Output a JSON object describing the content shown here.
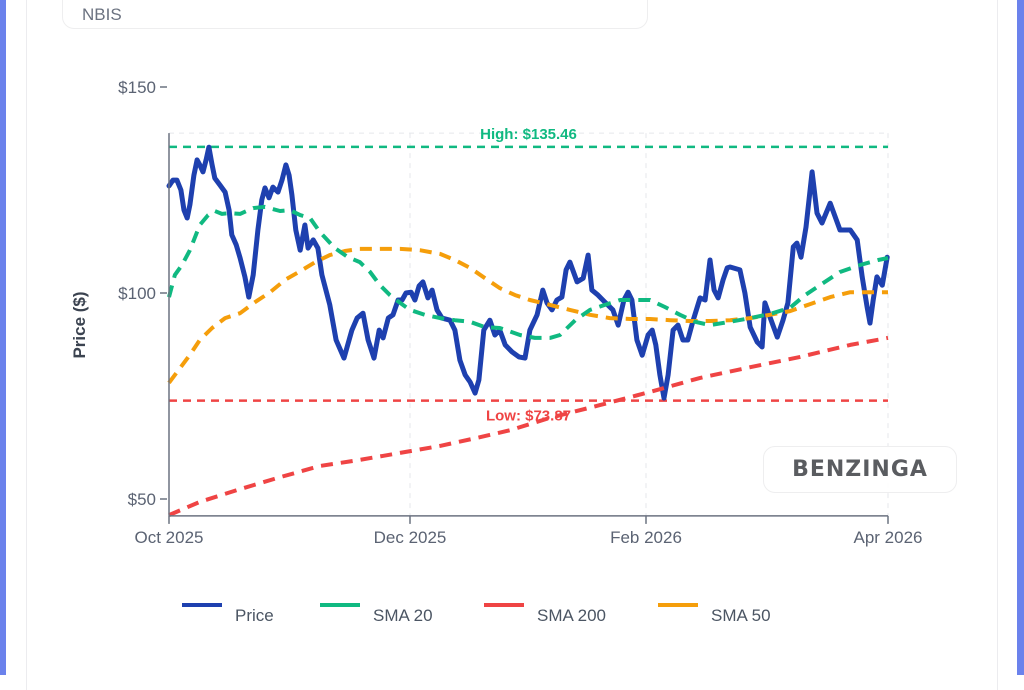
{
  "ticker": "NBIS",
  "logo": "BENZINGA",
  "colors": {
    "frame": "#6b82ec",
    "price": "#1e40af",
    "sma20": "#10b981",
    "sma200": "#ef4444",
    "sma50": "#f59e0b",
    "grid": "#e5e7eb",
    "axis": "#6b7280"
  },
  "chart_data": {
    "type": "line",
    "title": "NBIS",
    "xlabel": "",
    "ylabel": "Price ($)",
    "x_unit": "days since Oct 1, 2025",
    "x_ticks": [
      {
        "day": 0,
        "label": "Oct 2025"
      },
      {
        "day": 61,
        "label": "Dec 2025"
      },
      {
        "day": 123,
        "label": "Feb 2026"
      },
      {
        "day": 182,
        "label": "Apr 2026"
      }
    ],
    "y_ticks": [
      {
        "value": 50,
        "label": "$50"
      },
      {
        "value": 100,
        "label": "$100"
      },
      {
        "value": 150,
        "label": "$150"
      }
    ],
    "ylim": [
      45.9,
      138.8
    ],
    "xlim": [
      0,
      182
    ],
    "grid": true,
    "legend_position": "bottom",
    "annotations": [
      {
        "label": "High: $135.46",
        "value": 135.46,
        "series_color": "sma20",
        "position": "above"
      },
      {
        "label": "Low: $73.87",
        "value": 73.87,
        "series_color": "sma200",
        "position": "below"
      }
    ],
    "series": [
      {
        "name": "Price",
        "color_key": "price",
        "dash": false,
        "points": [
          [
            0,
            126.0
          ],
          [
            1.0,
            127.4
          ],
          [
            2.0,
            127.4
          ],
          [
            3.0,
            125.0
          ],
          [
            3.8,
            120.1
          ],
          [
            4.6,
            118.2
          ],
          [
            5.3,
            121.4
          ],
          [
            6.3,
            128.6
          ],
          [
            7.1,
            132.3
          ],
          [
            7.8,
            131.1
          ],
          [
            8.6,
            129.4
          ],
          [
            9.4,
            132.3
          ],
          [
            10.1,
            135.4
          ],
          [
            10.9,
            131.1
          ],
          [
            11.6,
            127.9
          ],
          [
            12.9,
            126.2
          ],
          [
            14.2,
            124.5
          ],
          [
            15.2,
            120.1
          ],
          [
            15.9,
            114.1
          ],
          [
            17.0,
            111.7
          ],
          [
            18.0,
            108.5
          ],
          [
            19.2,
            103.9
          ],
          [
            20.2,
            99.0
          ],
          [
            21.3,
            104.4
          ],
          [
            22.5,
            115.3
          ],
          [
            23.5,
            122.6
          ],
          [
            24.3,
            125.5
          ],
          [
            25.3,
            123.1
          ],
          [
            26.3,
            125.7
          ],
          [
            27.6,
            124.5
          ],
          [
            28.6,
            127.4
          ],
          [
            29.6,
            131.1
          ],
          [
            30.4,
            128.6
          ],
          [
            31.1,
            123.8
          ],
          [
            32.1,
            115.3
          ],
          [
            33.2,
            110.4
          ],
          [
            34.4,
            116.5
          ],
          [
            35.2,
            110.9
          ],
          [
            36.5,
            112.9
          ],
          [
            37.7,
            110.9
          ],
          [
            38.7,
            104.4
          ],
          [
            40.7,
            97.1
          ],
          [
            42.3,
            88.6
          ],
          [
            44.3,
            84.2
          ],
          [
            46.3,
            91.0
          ],
          [
            47.6,
            93.9
          ],
          [
            49.1,
            95.1
          ],
          [
            50.4,
            88.6
          ],
          [
            51.9,
            84.2
          ],
          [
            53.2,
            91.0
          ],
          [
            54.2,
            89.1
          ],
          [
            55.5,
            93.9
          ],
          [
            56.7,
            94.7
          ],
          [
            58.0,
            98.3
          ],
          [
            59.0,
            98.3
          ],
          [
            60.0,
            100.0
          ],
          [
            61.3,
            100.2
          ],
          [
            62.3,
            98.3
          ],
          [
            63.4,
            101.7
          ],
          [
            64.4,
            102.7
          ],
          [
            65.7,
            98.8
          ],
          [
            66.8,
            100.7
          ],
          [
            68.1,
            95.9
          ],
          [
            69.4,
            93.9
          ],
          [
            71.5,
            93.4
          ],
          [
            72.8,
            91.0
          ],
          [
            74.1,
            83.7
          ],
          [
            75.5,
            80.1
          ],
          [
            76.8,
            78.4
          ],
          [
            78.1,
            75.7
          ],
          [
            79.1,
            78.9
          ],
          [
            80.4,
            91.0
          ],
          [
            82.0,
            93.4
          ],
          [
            83.3,
            89.8
          ],
          [
            84.6,
            91.0
          ],
          [
            86.0,
            87.4
          ],
          [
            87.8,
            85.7
          ],
          [
            89.6,
            84.5
          ],
          [
            91.2,
            84.2
          ],
          [
            92.5,
            91.0
          ],
          [
            94.4,
            94.7
          ],
          [
            95.9,
            100.7
          ],
          [
            97.0,
            97.6
          ],
          [
            98.3,
            95.9
          ],
          [
            99.6,
            98.3
          ],
          [
            100.9,
            99.0
          ],
          [
            102.0,
            105.6
          ],
          [
            103.0,
            107.5
          ],
          [
            104.9,
            102.7
          ],
          [
            106.5,
            103.6
          ],
          [
            107.8,
            109.2
          ],
          [
            108.8,
            100.7
          ],
          [
            110.4,
            99.5
          ],
          [
            112.2,
            97.8
          ],
          [
            114.3,
            95.9
          ],
          [
            115.7,
            92.2
          ],
          [
            117.2,
            98.3
          ],
          [
            118.3,
            100.2
          ],
          [
            119.3,
            98.3
          ],
          [
            120.6,
            88.6
          ],
          [
            122.0,
            84.9
          ],
          [
            123.5,
            89.8
          ],
          [
            124.5,
            91.0
          ],
          [
            125.4,
            87.4
          ],
          [
            126.4,
            80.1
          ],
          [
            127.4,
            74.5
          ],
          [
            128.4,
            80.1
          ],
          [
            129.6,
            91.0
          ],
          [
            130.8,
            92.2
          ],
          [
            132.0,
            88.6
          ],
          [
            133.2,
            88.6
          ],
          [
            134.5,
            93.4
          ],
          [
            136.2,
            98.8
          ],
          [
            137.4,
            98.3
          ],
          [
            138.6,
            108.0
          ],
          [
            139.6,
            100.7
          ],
          [
            140.6,
            98.8
          ],
          [
            141.8,
            103.2
          ],
          [
            142.8,
            106.1
          ],
          [
            143.5,
            106.3
          ],
          [
            145.9,
            105.6
          ],
          [
            147.1,
            100.0
          ],
          [
            148.4,
            91.7
          ],
          [
            150.1,
            88.1
          ],
          [
            151.3,
            86.9
          ],
          [
            152.0,
            97.6
          ],
          [
            153.2,
            94.2
          ],
          [
            155.0,
            89.3
          ],
          [
            156.4,
            93.4
          ],
          [
            157.6,
            97.6
          ],
          [
            158.9,
            111.2
          ],
          [
            159.8,
            112.1
          ],
          [
            160.8,
            108.7
          ],
          [
            162.0,
            116.0
          ],
          [
            163.5,
            129.4
          ],
          [
            164.7,
            119.4
          ],
          [
            165.9,
            117.0
          ],
          [
            167.9,
            121.8
          ],
          [
            170.3,
            115.3
          ],
          [
            172.8,
            115.3
          ],
          [
            174.5,
            112.9
          ],
          [
            175.7,
            103.9
          ],
          [
            176.9,
            96.6
          ],
          [
            177.6,
            92.7
          ],
          [
            178.4,
            98.3
          ],
          [
            179.3,
            103.9
          ],
          [
            180.6,
            101.9
          ],
          [
            181.8,
            108.7
          ]
        ]
      },
      {
        "name": "SMA 20",
        "color_key": "sma20",
        "dash": true,
        "points": [
          [
            0,
            99.0
          ],
          [
            1.5,
            104.4
          ],
          [
            3.3,
            106.8
          ],
          [
            5.3,
            110.4
          ],
          [
            7.8,
            116.5
          ],
          [
            9.9,
            118.9
          ],
          [
            11.6,
            119.9
          ],
          [
            13.4,
            119.2
          ],
          [
            15.4,
            119.4
          ],
          [
            18.0,
            119.2
          ],
          [
            21.3,
            120.6
          ],
          [
            24.3,
            120.9
          ],
          [
            28.1,
            119.9
          ],
          [
            30.6,
            120.1
          ],
          [
            33.2,
            118.9
          ],
          [
            35.7,
            118.2
          ],
          [
            38.2,
            114.8
          ],
          [
            42.0,
            110.9
          ],
          [
            45.3,
            108.7
          ],
          [
            48.3,
            107.5
          ],
          [
            50.9,
            105.1
          ],
          [
            53.4,
            101.9
          ],
          [
            55.9,
            99.5
          ],
          [
            58.5,
            97.6
          ],
          [
            61,
            95.9
          ],
          [
            64.9,
            94.7
          ],
          [
            68.9,
            93.9
          ],
          [
            72.8,
            93.4
          ],
          [
            76.8,
            93.0
          ],
          [
            80.7,
            91.7
          ],
          [
            84.6,
            91.5
          ],
          [
            89.9,
            89.8
          ],
          [
            93.8,
            89.1
          ],
          [
            97.8,
            89.1
          ],
          [
            100.4,
            89.8
          ],
          [
            104.4,
            93.4
          ],
          [
            108.3,
            95.9
          ],
          [
            112.2,
            97.1
          ],
          [
            116.2,
            98.3
          ],
          [
            120.1,
            98.3
          ],
          [
            124.0,
            98.3
          ],
          [
            127.6,
            96.6
          ],
          [
            131.3,
            94.7
          ],
          [
            135.0,
            93.0
          ],
          [
            138.6,
            92.2
          ],
          [
            143.5,
            93.0
          ],
          [
            148.4,
            93.9
          ],
          [
            153.2,
            94.9
          ],
          [
            158.1,
            96.4
          ],
          [
            161.8,
            99.5
          ],
          [
            165.4,
            101.9
          ],
          [
            170.3,
            105.1
          ],
          [
            175.2,
            106.8
          ],
          [
            179.6,
            108.0
          ],
          [
            182,
            108.5
          ]
        ]
      },
      {
        "name": "SMA 200",
        "color_key": "sma200",
        "dash": true,
        "points": [
          [
            0,
            46.1
          ],
          [
            7.8,
            49.3
          ],
          [
            18.0,
            52.4
          ],
          [
            28.1,
            55.3
          ],
          [
            38.2,
            58.0
          ],
          [
            48.3,
            59.5
          ],
          [
            58.5,
            61.2
          ],
          [
            68.9,
            62.9
          ],
          [
            79.4,
            65.0
          ],
          [
            87.3,
            66.7
          ],
          [
            97.8,
            69.7
          ],
          [
            110.9,
            72.8
          ],
          [
            124.0,
            76.0
          ],
          [
            136.2,
            79.4
          ],
          [
            148.4,
            82.0
          ],
          [
            160.6,
            84.5
          ],
          [
            172.8,
            87.4
          ],
          [
            182,
            89.1
          ]
        ]
      },
      {
        "name": "SMA 50",
        "color_key": "sma50",
        "dash": true,
        "points": [
          [
            0,
            78.2
          ],
          [
            2.8,
            81.8
          ],
          [
            5.3,
            85.0
          ],
          [
            7.8,
            88.6
          ],
          [
            10.9,
            91.5
          ],
          [
            14.2,
            93.9
          ],
          [
            18.0,
            95.1
          ],
          [
            21.8,
            97.8
          ],
          [
            25.6,
            100.2
          ],
          [
            29.4,
            103.2
          ],
          [
            33.2,
            105.3
          ],
          [
            37.0,
            107.5
          ],
          [
            40.7,
            109.2
          ],
          [
            44.5,
            110.2
          ],
          [
            48.3,
            110.7
          ],
          [
            53.4,
            110.7
          ],
          [
            58.5,
            110.7
          ],
          [
            63.6,
            110.4
          ],
          [
            68.9,
            109.5
          ],
          [
            72.8,
            108.0
          ],
          [
            76.8,
            106.1
          ],
          [
            80.7,
            103.6
          ],
          [
            84.6,
            101.2
          ],
          [
            88.6,
            99.5
          ],
          [
            92.5,
            98.3
          ],
          [
            97.8,
            97.1
          ],
          [
            103.0,
            95.9
          ],
          [
            108.3,
            94.7
          ],
          [
            113.5,
            93.9
          ],
          [
            118.8,
            93.7
          ],
          [
            124.0,
            93.7
          ],
          [
            128.9,
            93.4
          ],
          [
            133.7,
            93.2
          ],
          [
            138.6,
            93.2
          ],
          [
            143.5,
            93.4
          ],
          [
            148.4,
            93.9
          ],
          [
            153.2,
            94.7
          ],
          [
            158.1,
            95.6
          ],
          [
            163.0,
            97.3
          ],
          [
            167.9,
            99.0
          ],
          [
            172.8,
            100.2
          ],
          [
            177.6,
            100.2
          ],
          [
            182,
            100.2
          ]
        ]
      }
    ]
  }
}
